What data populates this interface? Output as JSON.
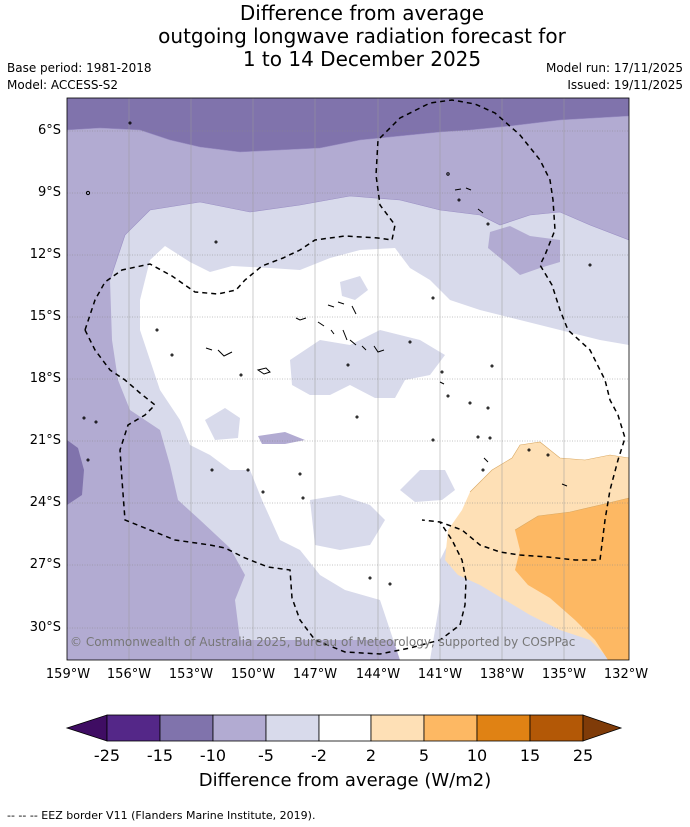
{
  "title": {
    "line1": "Difference from average",
    "line2": "outgoing longwave radiation forecast for",
    "line3": "1 to 14 December 2025"
  },
  "meta": {
    "base_period": "Base period: 1981-2018",
    "model": "Model: ACCESS-S2",
    "model_run": "Model run: 17/11/2025",
    "issued": "Issued: 19/11/2025"
  },
  "copyright": "© Commonwealth of Australia 2025, Bureau of Meteorology, supported by COSPPac",
  "colorbar": {
    "title": "Difference from average (W/m2)",
    "ticks": [
      "-25",
      "-15",
      "-10",
      "-5",
      "-2",
      "2",
      "5",
      "10",
      "15",
      "25"
    ],
    "under_color": "#3f0d63",
    "over_color": "#7f3b08",
    "colors": [
      "#542788",
      "#8073ac",
      "#b2abd2",
      "#d8daeb",
      "#ffffff",
      "#fee0b6",
      "#fdb863",
      "#e08214",
      "#b35806"
    ]
  },
  "footnote": "--  --  -- EEZ border V11 (Flanders Marine Institute, 2019).",
  "chart_data": {
    "type": "map",
    "variable": "OLR anomaly (W/m2)",
    "x_range_deg_lon": [
      -159,
      -132
    ],
    "y_range_deg_lat": [
      -31.5,
      -4.3
    ],
    "x_ticks": [
      "159°W",
      "156°W",
      "153°W",
      "150°W",
      "147°W",
      "144°W",
      "141°W",
      "138°W",
      "135°W",
      "132°W"
    ],
    "y_ticks": [
      "6°S",
      "9°S",
      "12°S",
      "15°S",
      "18°S",
      "21°S",
      "24°S",
      "27°S",
      "30°S"
    ],
    "x_tick_values": [
      -159,
      -156,
      -153,
      -150,
      -147,
      -144,
      -141,
      -138,
      -135,
      -132
    ],
    "y_tick_values": [
      -6,
      -9,
      -12,
      -15,
      -18,
      -21,
      -24,
      -27,
      -30
    ],
    "contour_bands": [
      {
        "range": "-15 to -10",
        "color": "#8073ac",
        "region": "north edge and small western patch"
      },
      {
        "range": "-10 to -5",
        "color": "#b2abd2",
        "region": "northern and western margins"
      },
      {
        "range": "-5 to -2",
        "color": "#d8daeb",
        "region": "central band"
      },
      {
        "range": "-2 to 2",
        "color": "#ffffff",
        "region": "central and south-central"
      },
      {
        "range": "2 to 5",
        "color": "#fee0b6",
        "region": "south-east"
      },
      {
        "range": "5 to 10",
        "color": "#fdb863",
        "region": "far south-east"
      }
    ]
  }
}
